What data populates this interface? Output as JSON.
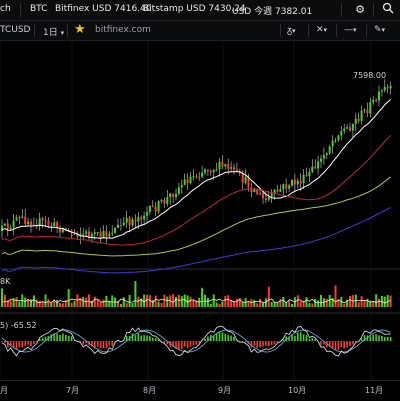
{
  "topbar": {
    "app_title_partial": "ch",
    "symbol": "BTC",
    "tickers": [
      {
        "exchange": "Bitfinex",
        "currency": "USD",
        "price": "7416.40"
      },
      {
        "exchange": "Bitstamp",
        "currency": "USD",
        "price": "7430.24"
      },
      {
        "exchange": "USD",
        "currency": "今週",
        "price": "7382.01"
      }
    ],
    "icons": [
      "gear-icon",
      "search-icon"
    ]
  },
  "toolbar": {
    "pair": "TCUSD",
    "interval": "1日",
    "interval_arrow": "▾",
    "source": "bitfinex.com",
    "buttons": [
      "▾",
      "▾",
      "▾",
      "▾"
    ]
  },
  "chart": {
    "price_label": "7598.00",
    "volume_label": "8K",
    "indicator_label": "5) -65.52",
    "x_ticks": [
      "月",
      "7月",
      "8月",
      "9月",
      "10月",
      "11月"
    ],
    "colors": {
      "up": "#44d21b",
      "down": "#ff3b2a",
      "wick": "#cfd3d8",
      "ma_fast": "#ffffff",
      "ma_mid": "#c0243a",
      "ma_slow": "#a6cc44",
      "ma_long": "#3c3ccf",
      "osc_line": "#cfd3d8",
      "osc_signal": "#5ea3d8"
    }
  }
}
